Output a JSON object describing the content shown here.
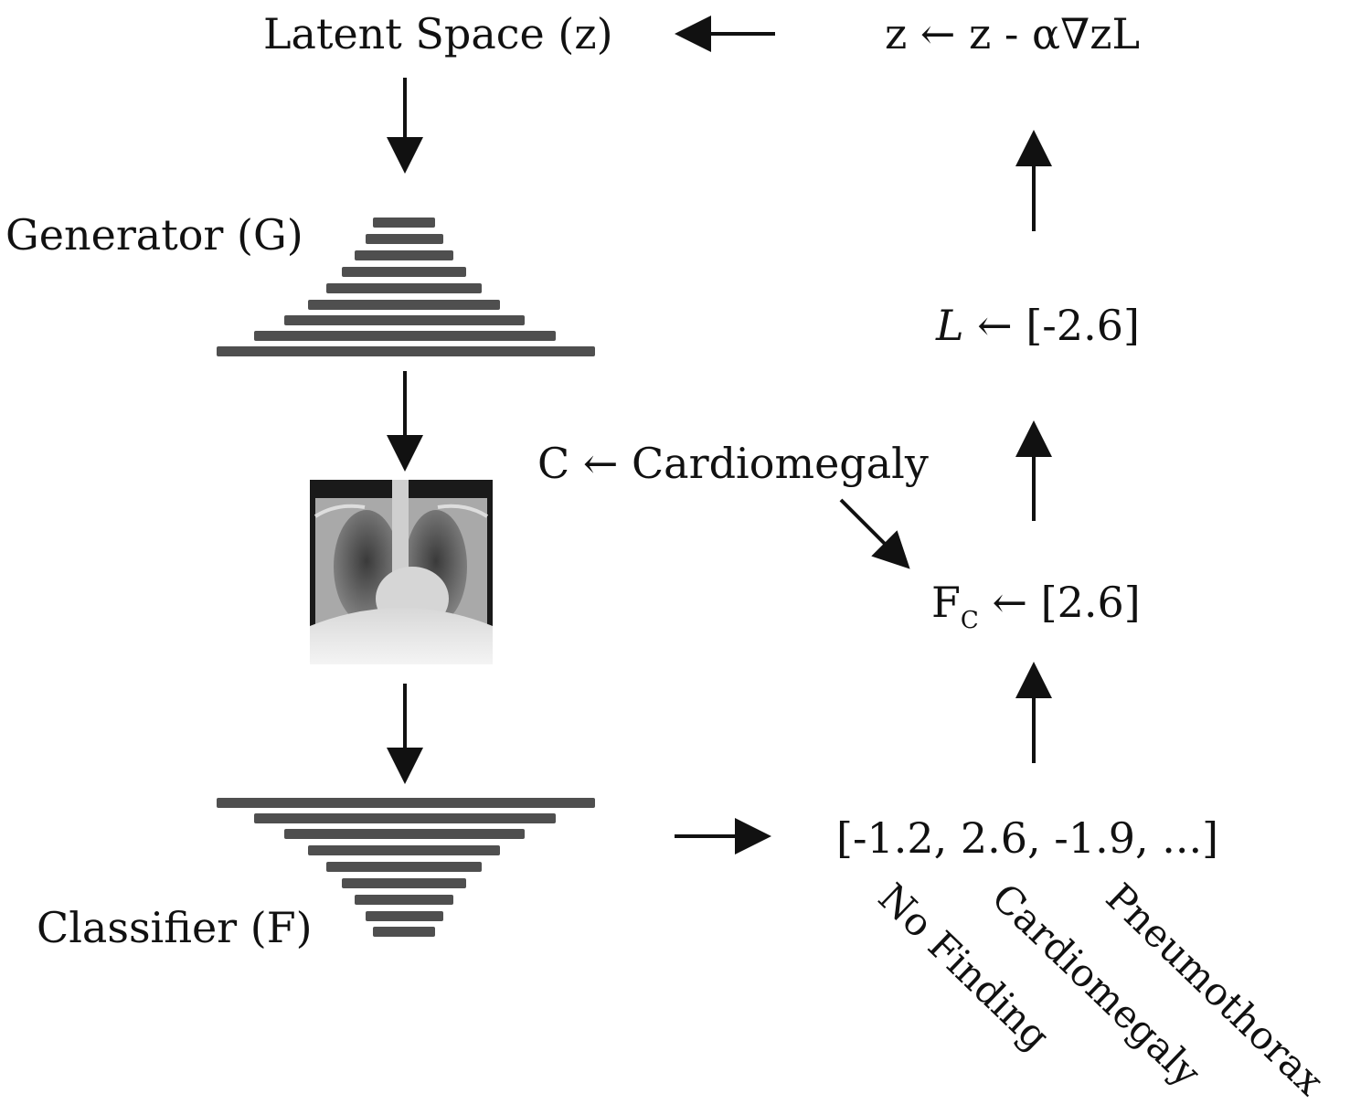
{
  "labels": {
    "latent_space": "Latent Space (z)",
    "update_rule": "z ← z - α∇zL",
    "generator": "Generator (G)",
    "classifier": "Classifier (F)",
    "loss_prefix": "L",
    "loss_value": "← [-2.6]",
    "class_select": "C ← Cardiomegaly",
    "fc_base": "F",
    "fc_sub": "C",
    "fc_value": "← [2.6]",
    "output_vector": "[-1.2, 2.6, -1.9, ...]"
  },
  "class_names": [
    "No Finding",
    "Cardiomegaly",
    "Pneumothorax"
  ],
  "colors": {
    "bars": "#4f4f4f",
    "text": "#111111"
  },
  "icons": {
    "xray": "chest-xray-image"
  }
}
